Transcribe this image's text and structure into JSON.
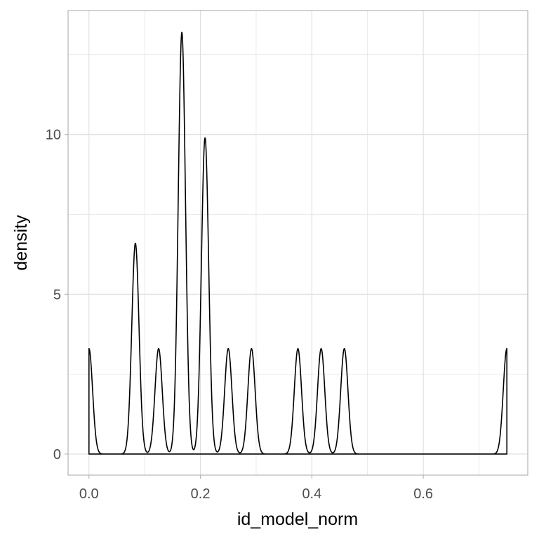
{
  "colors": {
    "background": "#ffffff",
    "grid": "#dedede",
    "panel_border": "#b3b3b3",
    "line": "#000000",
    "tick_label": "#4d4d4d"
  },
  "chart_data": {
    "type": "area",
    "title": "",
    "xlabel": "id_model_norm",
    "ylabel": "density",
    "xlim": [
      -0.0375,
      0.7875
    ],
    "ylim": [
      -0.66,
      13.88
    ],
    "x_ticks": [
      0.0,
      0.2,
      0.4,
      0.6
    ],
    "x_tick_labels": [
      "0.0",
      "0.2",
      "0.4",
      "0.6"
    ],
    "y_ticks": [
      0,
      5,
      10
    ],
    "y_tick_labels": [
      "0",
      "5",
      "10"
    ],
    "grid": true,
    "legend": "none",
    "fill": "none",
    "series": [
      {
        "name": "",
        "peaks": [
          {
            "x": 0.0,
            "density": 3.3
          },
          {
            "x": 0.0833,
            "density": 6.6
          },
          {
            "x": 0.125,
            "density": 3.3
          },
          {
            "x": 0.1667,
            "density": 13.2
          },
          {
            "x": 0.2083,
            "density": 9.9
          },
          {
            "x": 0.25,
            "density": 3.3
          },
          {
            "x": 0.2917,
            "density": 3.3
          },
          {
            "x": 0.375,
            "density": 3.3
          },
          {
            "x": 0.4167,
            "density": 3.3
          },
          {
            "x": 0.4583,
            "density": 3.3
          },
          {
            "x": 0.75,
            "density": 3.3
          }
        ],
        "x_min": 0.0,
        "x_max": 0.75
      }
    ]
  }
}
